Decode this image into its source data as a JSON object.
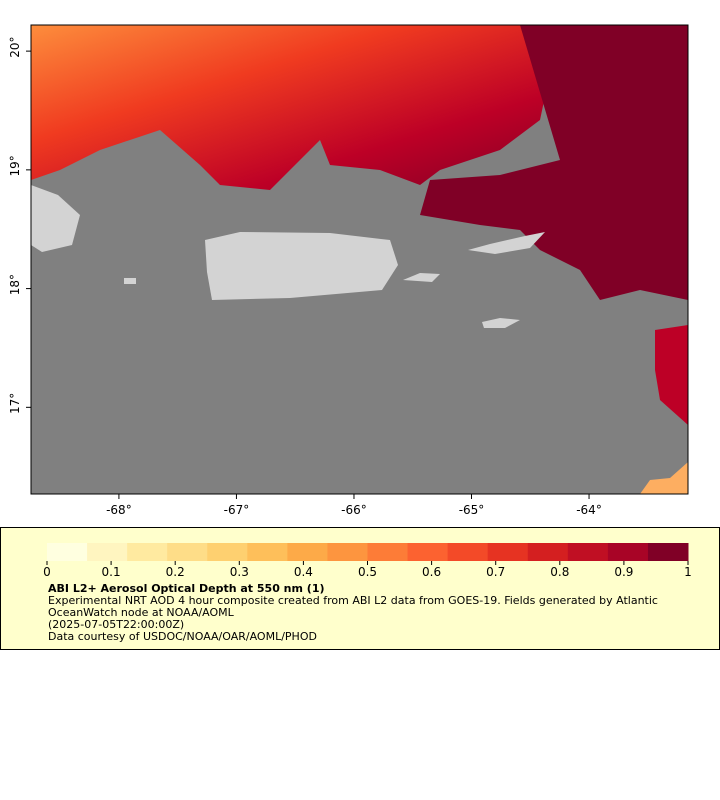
{
  "map": {
    "xlim": [
      -68.748,
      -63.158
    ],
    "ylim": [
      16.27,
      20.22
    ],
    "xticks": [
      {
        "value": -68,
        "label": "-68°"
      },
      {
        "value": -67,
        "label": "-67°"
      },
      {
        "value": -66,
        "label": "-66°"
      },
      {
        "value": -65,
        "label": "-65°"
      },
      {
        "value": -64,
        "label": "-64°"
      }
    ],
    "yticks": [
      {
        "value": 17,
        "label": "17°"
      },
      {
        "value": 18,
        "label": "18°"
      },
      {
        "value": 19,
        "label": "19°"
      },
      {
        "value": 20,
        "label": "20°"
      }
    ]
  },
  "colorbar": {
    "lim": [
      0,
      1
    ],
    "ticks": [
      0,
      0.1,
      0.2,
      0.3,
      0.4,
      0.5,
      0.6,
      0.7,
      0.8,
      0.9,
      1
    ],
    "colors": [
      "#ffffe0",
      "#fff5c0",
      "#ffeaa0",
      "#fedd88",
      "#fed070",
      "#febf5a",
      "#fdaa48",
      "#fd953f",
      "#fd7c37",
      "#fc6230",
      "#f34a28",
      "#e63322",
      "#d41f20",
      "#c00f23",
      "#a80426",
      "#800026"
    ]
  },
  "legend": {
    "title": "ABI L2+ Aerosol Optical Depth at 550 nm (1)",
    "description": "Experimental NRT AOD 4 hour composite created from ABI L2 data from GOES-19. Fields generated by Atlantic OceanWatch node at NOAA/AOML",
    "time": "(2025-07-05T22:00:00Z)",
    "credit": "Data courtesy of USDOC/NOAA/OAR/AOML/PHOD"
  }
}
